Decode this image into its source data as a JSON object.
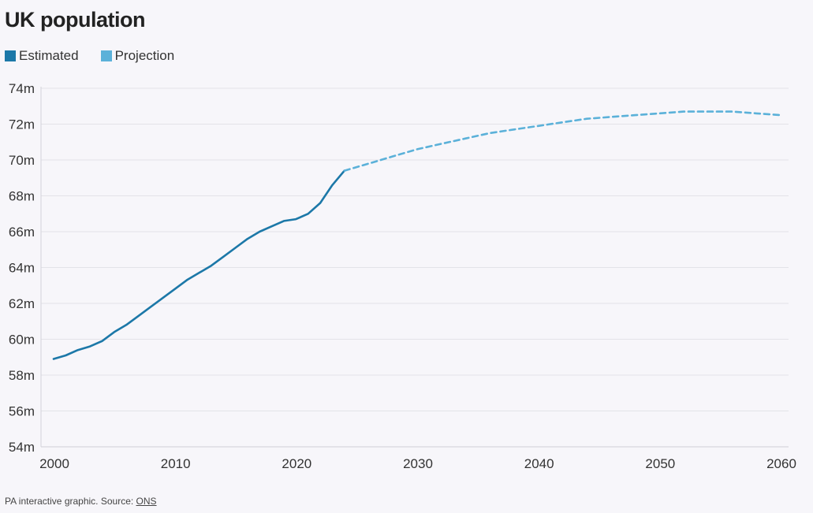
{
  "chart_data": {
    "type": "line",
    "title": "UK population",
    "xlabel": "",
    "ylabel": "",
    "xlim": [
      2000,
      2060
    ],
    "ylim": [
      54,
      74
    ],
    "x_ticks": [
      2000,
      2010,
      2020,
      2030,
      2040,
      2050,
      2060
    ],
    "y_ticks": [
      54,
      56,
      58,
      60,
      62,
      64,
      66,
      68,
      70,
      72,
      74
    ],
    "y_tick_labels": [
      "54m",
      "56m",
      "58m",
      "60m",
      "62m",
      "64m",
      "66m",
      "68m",
      "70m",
      "72m",
      "74m"
    ],
    "grid": true,
    "legend": "top-left",
    "series": [
      {
        "name": "Estimated",
        "color": "#1c78a8",
        "style": "solid",
        "x": [
          2000,
          2001,
          2002,
          2003,
          2004,
          2005,
          2006,
          2007,
          2008,
          2009,
          2010,
          2011,
          2012,
          2013,
          2014,
          2015,
          2016,
          2017,
          2018,
          2019,
          2020,
          2021,
          2022,
          2023,
          2024
        ],
        "y": [
          58.9,
          59.1,
          59.4,
          59.6,
          59.9,
          60.4,
          60.8,
          61.3,
          61.8,
          62.3,
          62.8,
          63.3,
          63.7,
          64.1,
          64.6,
          65.1,
          65.6,
          66.0,
          66.3,
          66.6,
          66.7,
          67.0,
          67.6,
          68.6,
          69.4
        ]
      },
      {
        "name": "Projection",
        "color": "#5bb1d9",
        "style": "dashed",
        "x": [
          2024,
          2026,
          2028,
          2030,
          2032,
          2034,
          2036,
          2038,
          2040,
          2042,
          2044,
          2046,
          2048,
          2050,
          2052,
          2054,
          2056,
          2058,
          2060
        ],
        "y": [
          69.4,
          69.8,
          70.2,
          70.6,
          70.9,
          71.2,
          71.5,
          71.7,
          71.9,
          72.1,
          72.3,
          72.4,
          72.5,
          72.6,
          72.7,
          72.7,
          72.7,
          72.6,
          72.5
        ]
      }
    ]
  },
  "footer": {
    "text": "PA interactive graphic. Source: ",
    "source_link": "ONS"
  }
}
